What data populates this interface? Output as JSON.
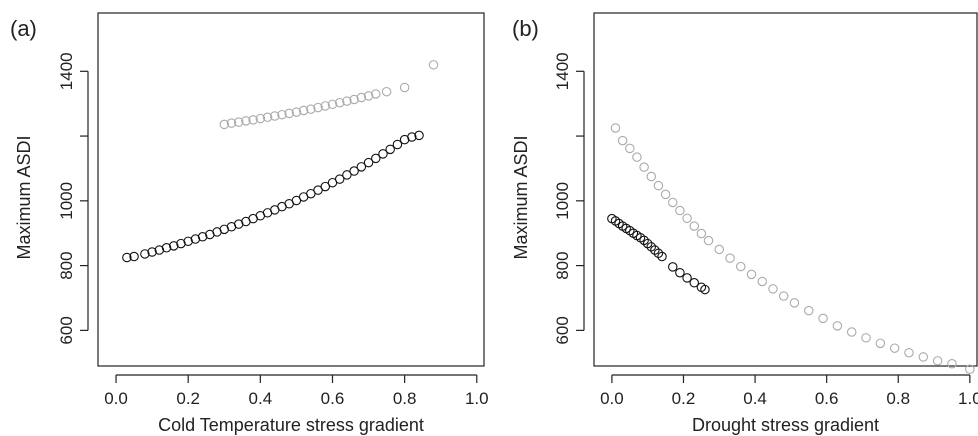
{
  "chart_data": [
    {
      "panel_label": "(a)",
      "type": "scatter",
      "xlabel": "Cold Temperature stress gradient",
      "ylabel": "Maximum ASDI",
      "xlim": [
        -0.05,
        1.02
      ],
      "ylim": [
        490,
        1580
      ],
      "xticks": [
        0.0,
        0.2,
        0.4,
        0.6,
        0.8,
        1.0
      ],
      "xtick_labels": [
        "0.0",
        "0.2",
        "0.4",
        "0.6",
        "0.8",
        "1.0"
      ],
      "yticks": [
        600,
        800,
        1000,
        1400
      ],
      "ytick_labels": [
        "600",
        "800",
        "1000",
        "1400"
      ],
      "grid": false,
      "legend": "none",
      "series": [
        {
          "color": "#aaaaaa",
          "points": [
            [
              0.3,
              1236
            ],
            [
              0.32,
              1240
            ],
            [
              0.34,
              1243
            ],
            [
              0.36,
              1247
            ],
            [
              0.38,
              1250
            ],
            [
              0.4,
              1254
            ],
            [
              0.42,
              1258
            ],
            [
              0.44,
              1262
            ],
            [
              0.46,
              1266
            ],
            [
              0.48,
              1270
            ],
            [
              0.5,
              1274
            ],
            [
              0.52,
              1279
            ],
            [
              0.54,
              1283
            ],
            [
              0.56,
              1288
            ],
            [
              0.58,
              1293
            ],
            [
              0.6,
              1298
            ],
            [
              0.62,
              1303
            ],
            [
              0.64,
              1308
            ],
            [
              0.66,
              1313
            ],
            [
              0.68,
              1319
            ],
            [
              0.7,
              1324
            ],
            [
              0.72,
              1330
            ],
            [
              0.75,
              1337
            ],
            [
              0.8,
              1350
            ],
            [
              0.88,
              1420
            ]
          ]
        },
        {
          "color": "#111111",
          "points": [
            [
              0.03,
              825
            ],
            [
              0.05,
              828
            ],
            [
              0.08,
              836
            ],
            [
              0.1,
              842
            ],
            [
              0.12,
              848
            ],
            [
              0.14,
              855
            ],
            [
              0.16,
              861
            ],
            [
              0.18,
              868
            ],
            [
              0.2,
              875
            ],
            [
              0.22,
              882
            ],
            [
              0.24,
              889
            ],
            [
              0.26,
              896
            ],
            [
              0.28,
              904
            ],
            [
              0.3,
              912
            ],
            [
              0.32,
              920
            ],
            [
              0.34,
              928
            ],
            [
              0.36,
              936
            ],
            [
              0.38,
              945
            ],
            [
              0.4,
              954
            ],
            [
              0.42,
              963
            ],
            [
              0.44,
              972
            ],
            [
              0.46,
              982
            ],
            [
              0.48,
              991
            ],
            [
              0.5,
              1001
            ],
            [
              0.52,
              1012
            ],
            [
              0.54,
              1022
            ],
            [
              0.56,
              1033
            ],
            [
              0.58,
              1044
            ],
            [
              0.6,
              1056
            ],
            [
              0.62,
              1067
            ],
            [
              0.64,
              1080
            ],
            [
              0.66,
              1092
            ],
            [
              0.68,
              1105
            ],
            [
              0.7,
              1118
            ],
            [
              0.72,
              1131
            ],
            [
              0.74,
              1145
            ],
            [
              0.76,
              1159
            ],
            [
              0.78,
              1174
            ],
            [
              0.8,
              1189
            ],
            [
              0.82,
              1197
            ],
            [
              0.84,
              1202
            ]
          ]
        }
      ]
    },
    {
      "panel_label": "(b)",
      "type": "scatter",
      "xlabel": "Drought stress gradient",
      "ylabel": "Maximum ASDI",
      "xlim": [
        -0.05,
        1.02
      ],
      "ylim": [
        490,
        1580
      ],
      "xticks": [
        0.0,
        0.2,
        0.4,
        0.6,
        0.8,
        1.0
      ],
      "xtick_labels": [
        "0.0",
        "0.2",
        "0.4",
        "0.6",
        "0.8",
        "1.0"
      ],
      "yticks": [
        600,
        800,
        1000,
        1400
      ],
      "ytick_labels": [
        "600",
        "800",
        "1000",
        "1400"
      ],
      "grid": false,
      "legend": "none",
      "series": [
        {
          "color": "#aaaaaa",
          "points": [
            [
              0.01,
              1225
            ],
            [
              0.03,
              1186
            ],
            [
              0.05,
              1162
            ],
            [
              0.07,
              1135
            ],
            [
              0.09,
              1104
            ],
            [
              0.11,
              1075
            ],
            [
              0.13,
              1047
            ],
            [
              0.15,
              1020
            ],
            [
              0.17,
              995
            ],
            [
              0.19,
              970
            ],
            [
              0.21,
              946
            ],
            [
              0.23,
              922
            ],
            [
              0.25,
              899
            ],
            [
              0.27,
              877
            ],
            [
              0.3,
              850
            ],
            [
              0.33,
              823
            ],
            [
              0.36,
              797
            ],
            [
              0.39,
              773
            ],
            [
              0.42,
              751
            ],
            [
              0.45,
              728
            ],
            [
              0.48,
              706
            ],
            [
              0.51,
              685
            ],
            [
              0.55,
              661
            ],
            [
              0.59,
              637
            ],
            [
              0.63,
              614
            ],
            [
              0.67,
              595
            ],
            [
              0.71,
              577
            ],
            [
              0.75,
              560
            ],
            [
              0.79,
              545
            ],
            [
              0.83,
              531
            ],
            [
              0.87,
              518
            ],
            [
              0.91,
              506
            ],
            [
              0.95,
              497
            ],
            [
              1.0,
              480
            ]
          ]
        },
        {
          "color": "#111111",
          "points": [
            [
              0.0,
              945
            ],
            [
              0.01,
              938
            ],
            [
              0.02,
              930
            ],
            [
              0.03,
              922
            ],
            [
              0.04,
              915
            ],
            [
              0.05,
              908
            ],
            [
              0.06,
              900
            ],
            [
              0.07,
              893
            ],
            [
              0.08,
              886
            ],
            [
              0.09,
              878
            ],
            [
              0.1,
              868
            ],
            [
              0.11,
              858
            ],
            [
              0.12,
              848
            ],
            [
              0.13,
              838
            ],
            [
              0.14,
              828
            ],
            [
              0.17,
              796
            ],
            [
              0.19,
              778
            ],
            [
              0.21,
              762
            ],
            [
              0.23,
              747
            ],
            [
              0.25,
              733
            ],
            [
              0.26,
              726
            ]
          ]
        }
      ]
    }
  ]
}
